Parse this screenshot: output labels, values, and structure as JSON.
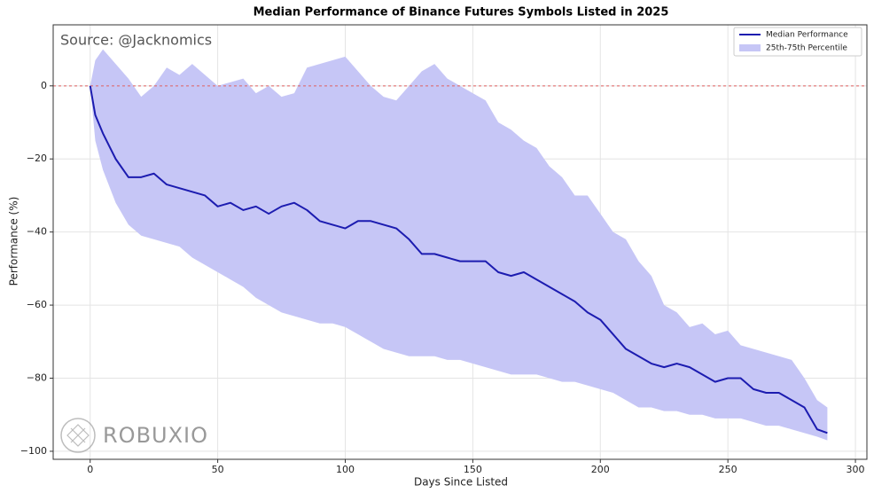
{
  "chart_data": {
    "type": "line",
    "title": "Median Performance of Binance Futures Symbols Listed in 2025",
    "x_label": "Days Since Listed",
    "y_label": "Performance (%)",
    "annotation": "Source: @Jacknomics",
    "watermark": "ROBUXIO",
    "x": [
      0,
      2,
      5,
      10,
      15,
      20,
      25,
      30,
      35,
      40,
      45,
      50,
      55,
      60,
      65,
      70,
      75,
      80,
      85,
      90,
      95,
      100,
      105,
      110,
      115,
      120,
      125,
      130,
      135,
      140,
      145,
      150,
      155,
      160,
      165,
      170,
      175,
      180,
      185,
      190,
      195,
      200,
      205,
      210,
      215,
      220,
      225,
      230,
      235,
      240,
      245,
      250,
      255,
      260,
      265,
      270,
      275,
      280,
      285,
      289
    ],
    "series": [
      {
        "name": "Median Performance",
        "color": "#1c1cb0",
        "values": [
          0,
          -8,
          -13,
          -20,
          -25,
          -25,
          -24,
          -27,
          -28,
          -29,
          -30,
          -33,
          -32,
          -34,
          -33,
          -35,
          -33,
          -32,
          -34,
          -37,
          -38,
          -39,
          -37,
          -37,
          -38,
          -39,
          -42,
          -46,
          -46,
          -47,
          -48,
          -48,
          -48,
          -51,
          -52,
          -51,
          -53,
          -55,
          -57,
          -59,
          -62,
          -64,
          -68,
          -72,
          -74,
          -76,
          -77,
          -76,
          -77,
          -79,
          -81,
          -80,
          -80,
          -83,
          -84,
          -84,
          -86,
          -88,
          -94,
          -95
        ]
      }
    ],
    "band": {
      "name": "25th-75th Percentile",
      "color": "#c6c6f6",
      "upper": [
        0,
        7,
        10,
        6,
        2,
        -3,
        0,
        5,
        3,
        6,
        3,
        0,
        1,
        2,
        -2,
        0,
        -3,
        -2,
        5,
        6,
        7,
        8,
        4,
        0,
        -3,
        -4,
        0,
        4,
        6,
        2,
        0,
        -2,
        -4,
        -10,
        -12,
        -15,
        -17,
        -22,
        -25,
        -30,
        -30,
        -35,
        -40,
        -42,
        -48,
        -52,
        -60,
        -62,
        -66,
        -65,
        -68,
        -67,
        -71,
        -72,
        -73,
        -74,
        -75,
        -80,
        -86,
        -88
      ],
      "lower": [
        0,
        -15,
        -23,
        -32,
        -38,
        -41,
        -42,
        -43,
        -44,
        -47,
        -49,
        -51,
        -53,
        -55,
        -58,
        -60,
        -62,
        -63,
        -64,
        -65,
        -65,
        -66,
        -68,
        -70,
        -72,
        -73,
        -74,
        -74,
        -74,
        -75,
        -75,
        -76,
        -77,
        -78,
        -79,
        -79,
        -79,
        -80,
        -81,
        -81,
        -82,
        -83,
        -84,
        -86,
        -88,
        -88,
        -89,
        -89,
        -90,
        -90,
        -91,
        -91,
        -91,
        -92,
        -93,
        -93,
        -94,
        -95,
        -96,
        -97
      ]
    },
    "reference_line": {
      "value": 0,
      "color": "#e06060"
    },
    "xlim": [
      -14.5,
      304.5
    ],
    "ylim": [
      -102.2,
      16.7
    ],
    "xticks": [
      0,
      50,
      100,
      150,
      200,
      250,
      300
    ],
    "yticks": [
      {
        "value": -100,
        "label": "−100"
      },
      {
        "value": -80,
        "label": "−80"
      },
      {
        "value": -60,
        "label": "−60"
      },
      {
        "value": -40,
        "label": "−40"
      },
      {
        "value": -20,
        "label": "−20"
      },
      0
    ],
    "grid": true,
    "legend": "upper right"
  }
}
